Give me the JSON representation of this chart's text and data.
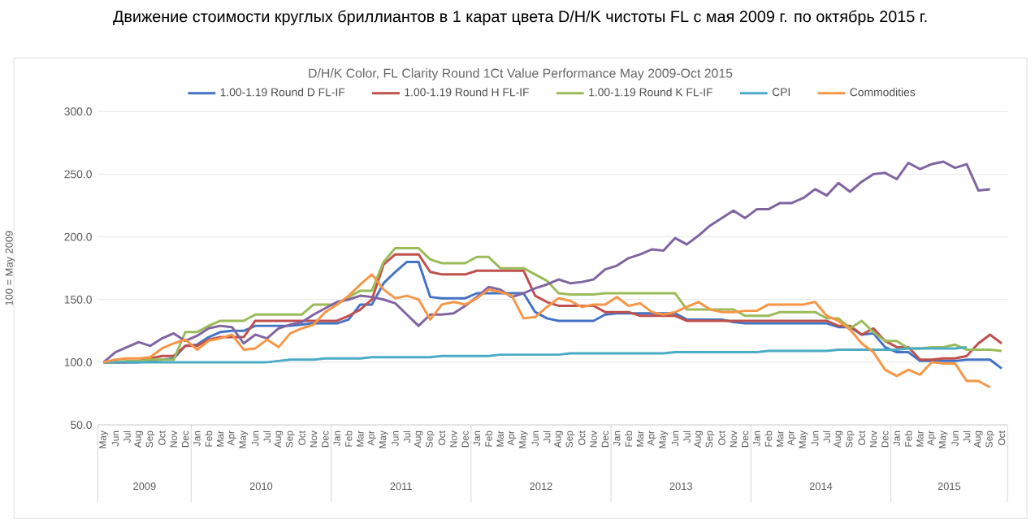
{
  "chart_data": {
    "type": "line",
    "title": "Движение стоимости круглых бриллиантов в 1 карат цвета D/H/K чистоты FL с мая 2009 г. по октябрь 2015 г.",
    "subtitle": "D/H/K Color, FL Clarity Round 1Ct Value Performance May 2009-Oct 2015",
    "ylabel": "100 = May 2009",
    "categories": [
      "May",
      "Jun",
      "Jul",
      "Aug",
      "Sep",
      "Oct",
      "Nov",
      "Dec",
      "Jan",
      "Feb",
      "Mar",
      "Apr",
      "May",
      "Jun",
      "Jul",
      "Aug",
      "Sep",
      "Oct",
      "Nov",
      "Dec",
      "Jan",
      "Feb",
      "Mar",
      "Apr",
      "May",
      "Jun",
      "Jul",
      "Aug",
      "Sep",
      "Oct",
      "Nov",
      "Dec",
      "Jan",
      "Feb",
      "Mar",
      "Apr",
      "May",
      "Jun",
      "Jul",
      "Aug",
      "Sep",
      "Oct",
      "Nov",
      "Dec",
      "Jan",
      "Feb",
      "Mar",
      "Apr",
      "May",
      "Jun",
      "Jul",
      "Aug",
      "Sep",
      "Oct",
      "Nov",
      "Dec",
      "Jan",
      "Feb",
      "Mar",
      "Apr",
      "May",
      "Jun",
      "Jul",
      "Aug",
      "Sep",
      "Oct",
      "Nov",
      "Dec",
      "Jan",
      "Feb",
      "Mar",
      "Apr",
      "May",
      "Jun",
      "Jul",
      "Aug",
      "Sep",
      "Oct"
    ],
    "annotations": [
      "2009",
      "2010",
      "2011",
      "2012",
      "2013",
      "2014",
      "2015"
    ],
    "series": [
      {
        "name": "1.00-1.19 Round D FL-IF",
        "color": "#4472c4",
        "values": [
          100,
          100,
          100,
          100,
          101,
          102,
          103,
          113,
          114,
          120,
          124,
          125,
          125,
          129,
          129,
          129,
          129,
          130,
          131,
          131,
          131,
          134,
          146,
          146,
          163,
          172,
          180,
          180,
          152,
          151,
          151,
          151,
          155,
          155,
          155,
          155,
          155,
          140,
          135,
          133,
          133,
          133,
          133,
          138,
          139,
          139,
          139,
          139,
          139,
          139,
          134,
          134,
          134,
          134,
          132,
          131,
          131,
          131,
          131,
          131,
          131,
          131,
          131,
          128,
          128,
          122,
          123,
          112,
          108,
          108,
          101,
          101,
          101,
          101,
          102,
          102,
          102,
          95
        ]
      },
      {
        "name": "1.00-1.19 Round H FL-IF",
        "color": "#c0504d",
        "values": [
          100,
          100,
          100,
          101,
          103,
          105,
          105,
          113,
          113,
          118,
          120,
          120,
          120,
          133,
          133,
          133,
          133,
          133,
          133,
          133,
          133,
          137,
          142,
          150,
          178,
          186,
          186,
          186,
          172,
          170,
          170,
          170,
          173,
          173,
          173,
          173,
          173,
          153,
          148,
          145,
          145,
          145,
          145,
          140,
          140,
          140,
          137,
          137,
          137,
          137,
          133,
          133,
          133,
          133,
          133,
          133,
          133,
          133,
          133,
          133,
          133,
          133,
          133,
          129,
          129,
          122,
          127,
          117,
          112,
          112,
          102,
          102,
          103,
          103,
          105,
          115,
          122,
          115
        ]
      },
      {
        "name": "1.00-1.19 Round K FL-IF",
        "color": "#9bbb59",
        "values": [
          100,
          100,
          101,
          101,
          102,
          102,
          102,
          124,
          124,
          129,
          133,
          133,
          133,
          138,
          138,
          138,
          138,
          138,
          146,
          146,
          146,
          152,
          157,
          157,
          180,
          191,
          191,
          191,
          182,
          179,
          179,
          179,
          184,
          184,
          175,
          175,
          175,
          170,
          165,
          155,
          154,
          154,
          154,
          155,
          155,
          155,
          155,
          155,
          155,
          155,
          142,
          142,
          142,
          142,
          142,
          137,
          137,
          137,
          140,
          140,
          140,
          140,
          135,
          135,
          127,
          133,
          124,
          117,
          117,
          111,
          111,
          112,
          112,
          114,
          110,
          110,
          110,
          109
        ]
      },
      {
        "color": "#8064a2",
        "values": [
          100,
          108,
          112,
          116,
          113,
          119,
          123,
          117,
          121,
          127,
          129,
          128,
          115,
          122,
          119,
          127,
          130,
          132,
          138,
          143,
          148,
          150,
          153,
          152,
          150,
          147,
          138,
          129,
          138,
          138,
          139,
          145,
          152,
          160,
          158,
          152,
          155,
          159,
          162,
          166,
          163,
          164,
          166,
          174,
          177,
          183,
          186,
          190,
          189,
          199,
          194,
          201,
          209,
          215,
          221,
          215,
          222,
          222,
          227,
          227,
          231,
          238,
          233,
          243,
          236,
          244,
          250,
          251,
          246,
          259,
          254,
          258,
          260,
          255,
          258,
          237,
          238,
          null
        ]
      },
      {
        "name": "CPI",
        "color": "#4bacc6",
        "values": [
          100,
          100,
          100,
          100,
          100,
          100,
          100,
          100,
          100,
          100,
          100,
          100,
          100,
          100,
          100,
          101,
          102,
          102,
          102,
          103,
          103,
          103,
          103,
          104,
          104,
          104,
          104,
          104,
          104,
          105,
          105,
          105,
          105,
          105,
          106,
          106,
          106,
          106,
          106,
          106,
          107,
          107,
          107,
          107,
          107,
          107,
          107,
          107,
          107,
          108,
          108,
          108,
          108,
          108,
          108,
          108,
          108,
          109,
          109,
          109,
          109,
          109,
          109,
          110,
          110,
          110,
          110,
          110,
          110,
          111,
          111,
          111,
          111,
          111,
          112,
          null,
          null,
          null
        ]
      },
      {
        "name": "Commodities",
        "color": "#f79646",
        "values": [
          100,
          102,
          103,
          103,
          104,
          111,
          115,
          118,
          110,
          117,
          119,
          122,
          110,
          111,
          118,
          112,
          123,
          127,
          130,
          140,
          146,
          153,
          162,
          170,
          158,
          151,
          153,
          150,
          134,
          146,
          148,
          146,
          151,
          158,
          156,
          153,
          135,
          136,
          144,
          151,
          149,
          144,
          146,
          146,
          152,
          145,
          147,
          140,
          138,
          140,
          144,
          148,
          142,
          140,
          140,
          141,
          141,
          146,
          146,
          146,
          146,
          148,
          137,
          133,
          126,
          115,
          108,
          94,
          89,
          94,
          90,
          100,
          99,
          99,
          85,
          85,
          80,
          null
        ]
      }
    ],
    "ylim": [
      50,
      300
    ],
    "yticks": [
      {
        "value": 50,
        "label": "50.0"
      },
      {
        "value": 100,
        "label": "100.0"
      },
      {
        "value": 150,
        "label": "150.0"
      },
      {
        "value": 200,
        "label": "200.0"
      },
      {
        "value": 250,
        "label": "250.0"
      },
      {
        "value": 300,
        "label": "300.0"
      }
    ],
    "grid": "y",
    "legend": "top",
    "marker": "none",
    "line_style": "solid"
  }
}
